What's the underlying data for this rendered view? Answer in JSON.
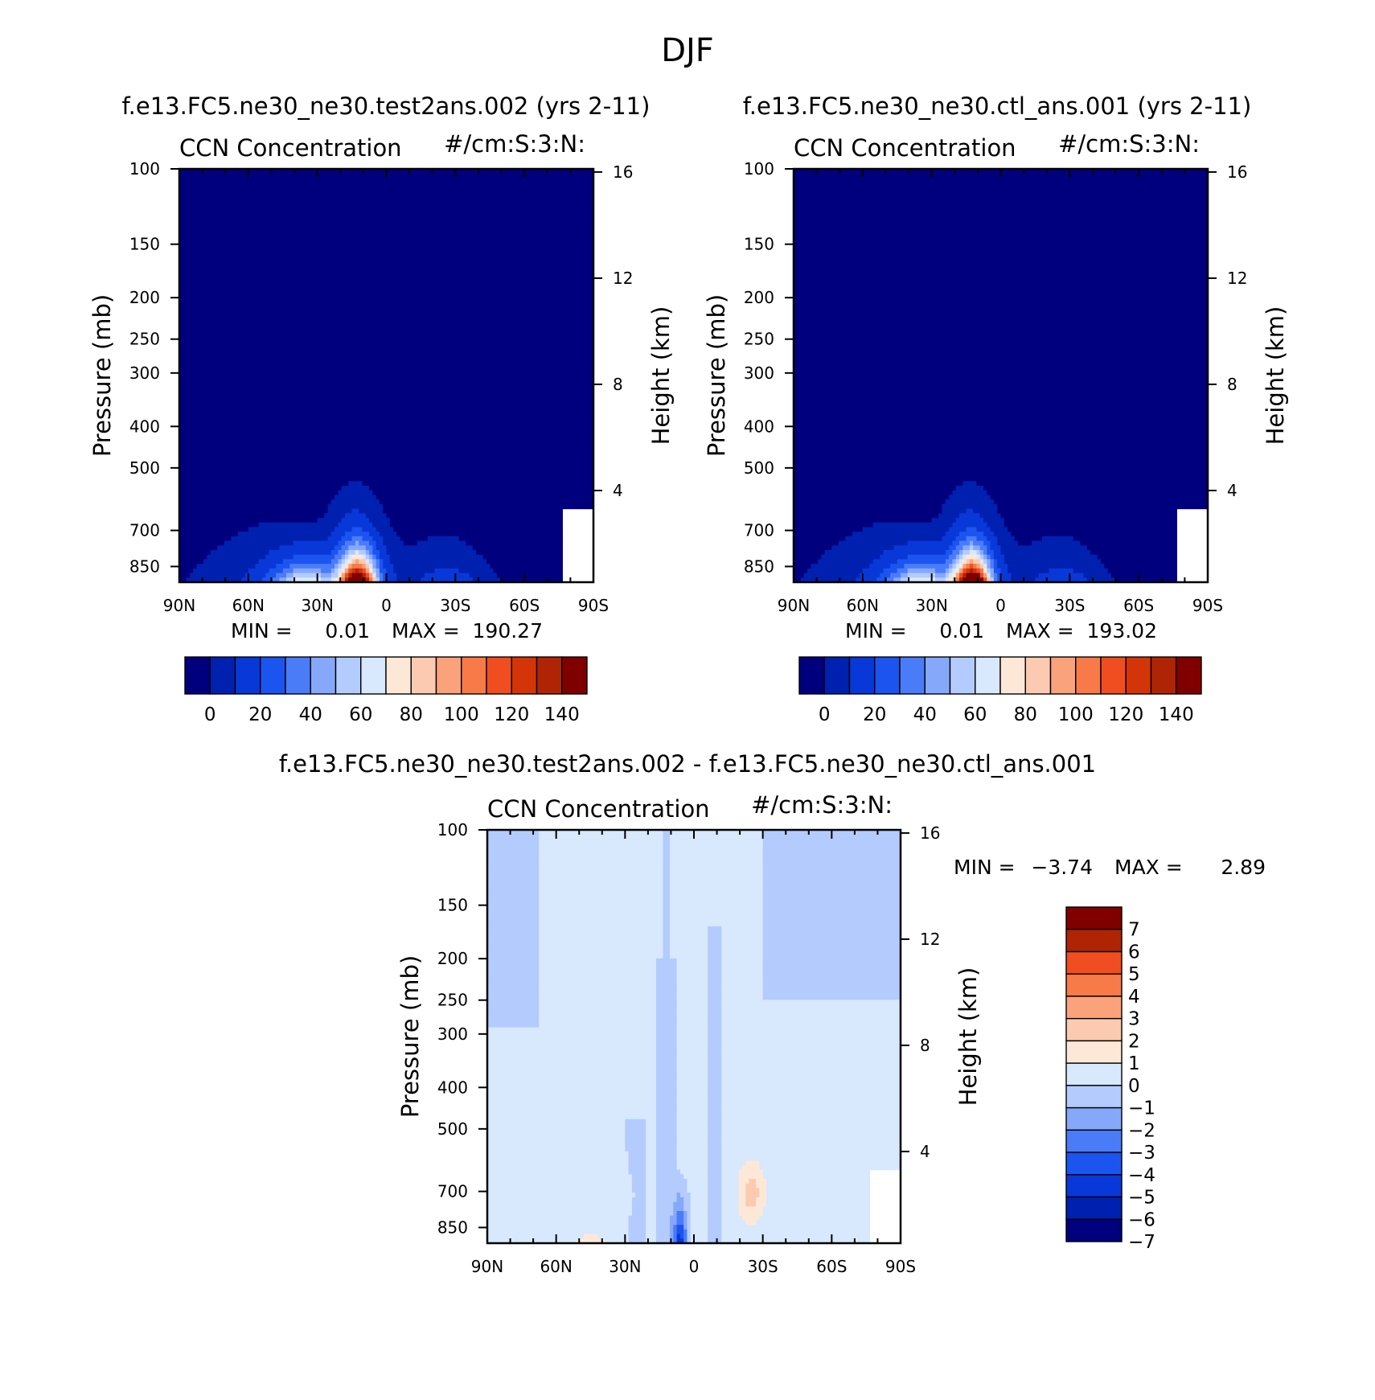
{
  "figure_title": "DJF",
  "panels": [
    {
      "case_title": "f.e13.FC5.ne30_ne30.test2ans.002 (yrs 2-11)",
      "variable": "CCN Concentration",
      "units": "#/cm:S:3:N:",
      "min_label": "MIN =",
      "min_value": "0.01",
      "max_label": "MAX =",
      "max_value": "190.27",
      "y_title": "Pressure (mb)",
      "y2_title": "Height (km)"
    },
    {
      "case_title": "f.e13.FC5.ne30_ne30.ctl_ans.001 (yrs 2-11)",
      "variable": "CCN Concentration",
      "units": "#/cm:S:3:N:",
      "min_label": "MIN =",
      "min_value": "0.01",
      "max_label": "MAX =",
      "max_value": "193.02",
      "y_title": "Pressure (mb)",
      "y2_title": "Height (km)"
    },
    {
      "case_title": "f.e13.FC5.ne30_ne30.test2ans.002 - f.e13.FC5.ne30_ne30.ctl_ans.001",
      "variable": "CCN Concentration",
      "units": "#/cm:S:3:N:",
      "min_label": "MIN =",
      "min_value": "-3.74",
      "max_label": "MAX =",
      "max_value": "2.89",
      "y_title": "Pressure (mb)",
      "y2_title": "Height (km)"
    }
  ],
  "chart_data": [
    {
      "type": "heatmap",
      "title": "f.e13.FC5.ne30_ne30.test2ans.002 (yrs 2-11)",
      "subtitle": "CCN Concentration",
      "xlabel": "",
      "ylabel": "Pressure (mb)",
      "y2label": "Height (km)",
      "x_ticks": [
        "90N",
        "60N",
        "30N",
        "0",
        "30S",
        "60S",
        "90S"
      ],
      "y_ticks": [
        100,
        150,
        200,
        250,
        300,
        400,
        500,
        700,
        850
      ],
      "y2_ticks": [
        16,
        12,
        8,
        4
      ],
      "ylim": [
        100,
        925
      ],
      "contour_levels": [
        0,
        10,
        20,
        30,
        40,
        50,
        60,
        70,
        80,
        90,
        100,
        110,
        120,
        130,
        140
      ],
      "colorbar_labels": [
        "0",
        "20",
        "40",
        "60",
        "80",
        "100",
        "120",
        "140"
      ],
      "min": 0.01,
      "max": 190.27
    },
    {
      "type": "heatmap",
      "title": "f.e13.FC5.ne30_ne30.ctl_ans.001 (yrs 2-11)",
      "subtitle": "CCN Concentration",
      "xlabel": "",
      "ylabel": "Pressure (mb)",
      "y2label": "Height (km)",
      "x_ticks": [
        "90N",
        "60N",
        "30N",
        "0",
        "30S",
        "60S",
        "90S"
      ],
      "y_ticks": [
        100,
        150,
        200,
        250,
        300,
        400,
        500,
        700,
        850
      ],
      "y2_ticks": [
        16,
        12,
        8,
        4
      ],
      "ylim": [
        100,
        925
      ],
      "contour_levels": [
        0,
        10,
        20,
        30,
        40,
        50,
        60,
        70,
        80,
        90,
        100,
        110,
        120,
        130,
        140
      ],
      "colorbar_labels": [
        "0",
        "20",
        "40",
        "60",
        "80",
        "100",
        "120",
        "140"
      ],
      "min": 0.01,
      "max": 193.02
    },
    {
      "type": "heatmap",
      "title": "f.e13.FC5.ne30_ne30.test2ans.002 - f.e13.FC5.ne30_ne30.ctl_ans.001",
      "subtitle": "CCN Concentration",
      "xlabel": "",
      "ylabel": "Pressure (mb)",
      "y2label": "Height (km)",
      "x_ticks": [
        "90N",
        "60N",
        "30N",
        "0",
        "30S",
        "60S",
        "90S"
      ],
      "y_ticks": [
        100,
        150,
        200,
        250,
        300,
        400,
        500,
        700,
        850
      ],
      "y2_ticks": [
        16,
        12,
        8,
        4
      ],
      "ylim": [
        100,
        925
      ],
      "contour_levels": [
        -7,
        -6,
        -5,
        -4,
        -3,
        -2,
        -1,
        0,
        1,
        2,
        3,
        4,
        5,
        6,
        7
      ],
      "colorbar_labels": [
        "7",
        "6",
        "5",
        "4",
        "3",
        "2",
        "1",
        "0",
        "-1",
        "-2",
        "-3",
        "-4",
        "-5",
        "-6",
        "-7"
      ],
      "min": -3.74,
      "max": 2.89
    }
  ],
  "colors": {
    "abs_palette": [
      "#00007f",
      "#0020b0",
      "#0838d8",
      "#1c54f0",
      "#4a7cf8",
      "#86a8fb",
      "#b4cbfd",
      "#d8e8fd",
      "#fde8d8",
      "#fccab0",
      "#faa27c",
      "#f87a48",
      "#f04e20",
      "#d43508",
      "#b02406",
      "#800000"
    ],
    "diff_palette": [
      "#00007f",
      "#0020b0",
      "#0838d8",
      "#1c54f0",
      "#4a7cf8",
      "#86a8fb",
      "#b4cbfd",
      "#d8e8fd",
      "#fde8d8",
      "#fccab0",
      "#faa27c",
      "#f87a48",
      "#f04e20",
      "#b02406",
      "#800000"
    ]
  }
}
